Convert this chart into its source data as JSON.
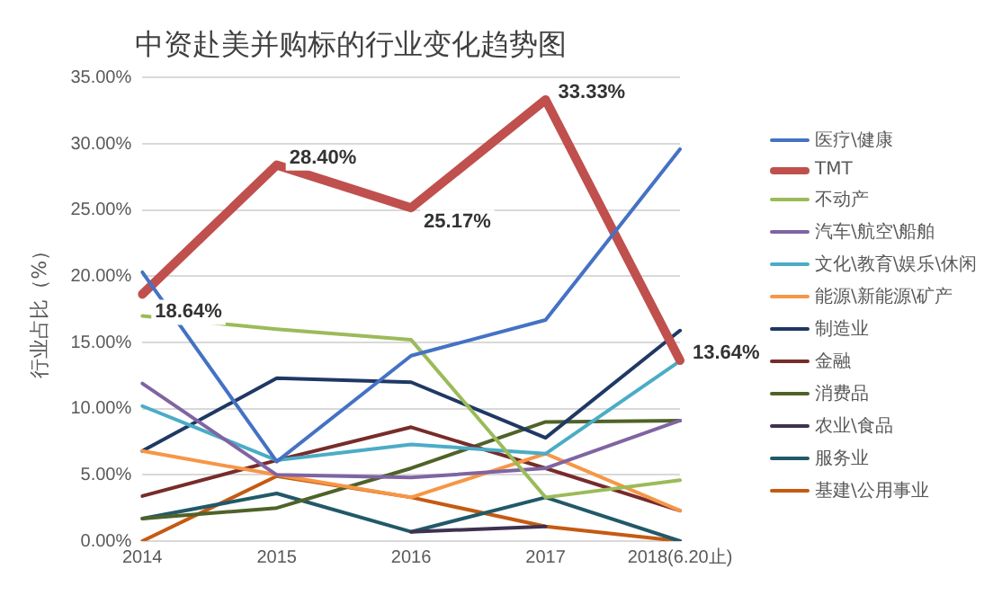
{
  "chart_data": {
    "type": "line",
    "title": "中资赴美并购标的行业变化趋势图",
    "ylabel": "行业占比（%）",
    "categories": [
      "2014",
      "2015",
      "2016",
      "2017",
      "2018(6.20止)"
    ],
    "ylim": [
      0,
      35
    ],
    "yticks": [
      {
        "value": 0,
        "label": "0.00%"
      },
      {
        "value": 5,
        "label": "5.00%"
      },
      {
        "value": 10,
        "label": "10.00%"
      },
      {
        "value": 15,
        "label": "15.00%"
      },
      {
        "value": 20,
        "label": "20.00%"
      },
      {
        "value": 25,
        "label": "25.00%"
      },
      {
        "value": 30,
        "label": "30.00%"
      },
      {
        "value": 35,
        "label": "35.00%"
      }
    ],
    "grid": "y",
    "legend": "right",
    "marker": "none",
    "series": [
      {
        "name": "医疗\\健康",
        "color": "#4472c4",
        "values": [
          20.3,
          6.0,
          14.0,
          16.7,
          29.6
        ]
      },
      {
        "name": "TMT",
        "color": "#c0504d",
        "values": [
          18.64,
          28.4,
          25.17,
          33.33,
          13.64
        ],
        "value_labels": [
          "18.64%",
          "28.40%",
          "25.17%",
          "33.33%",
          "13.64%"
        ]
      },
      {
        "name": "不动产",
        "color": "#9bbb59",
        "values": [
          17.0,
          16.0,
          15.2,
          3.3,
          4.6
        ]
      },
      {
        "name": "汽车\\航空\\船舶",
        "color": "#8064a2",
        "values": [
          11.9,
          5.0,
          4.8,
          5.5,
          9.1
        ]
      },
      {
        "name": "文化\\教育\\娱乐\\休闲",
        "color": "#4bacc6",
        "values": [
          10.2,
          6.1,
          7.3,
          6.6,
          13.6
        ]
      },
      {
        "name": "能源\\新能源\\矿产",
        "color": "#f79646",
        "values": [
          6.8,
          5.0,
          3.3,
          6.6,
          2.3
        ]
      },
      {
        "name": "制造业",
        "color": "#1f3864",
        "values": [
          6.8,
          12.3,
          12.0,
          7.8,
          15.9
        ]
      },
      {
        "name": "金融",
        "color": "#772c2a",
        "values": [
          3.4,
          6.1,
          8.6,
          5.5,
          2.3
        ]
      },
      {
        "name": "消费品",
        "color": "#4f6228",
        "values": [
          1.7,
          2.5,
          5.5,
          9.0,
          9.1
        ]
      },
      {
        "name": "农业\\食品",
        "color": "#3f3151",
        "values": [
          null,
          null,
          0.7,
          1.1,
          null
        ]
      },
      {
        "name": "服务业",
        "color": "#215968",
        "values": [
          1.7,
          3.6,
          0.7,
          3.3,
          0.0
        ]
      },
      {
        "name": "基建\\公用事业",
        "color": "#c55a11",
        "values": [
          0.0,
          4.9,
          3.3,
          1.1,
          0.0
        ]
      }
    ]
  }
}
